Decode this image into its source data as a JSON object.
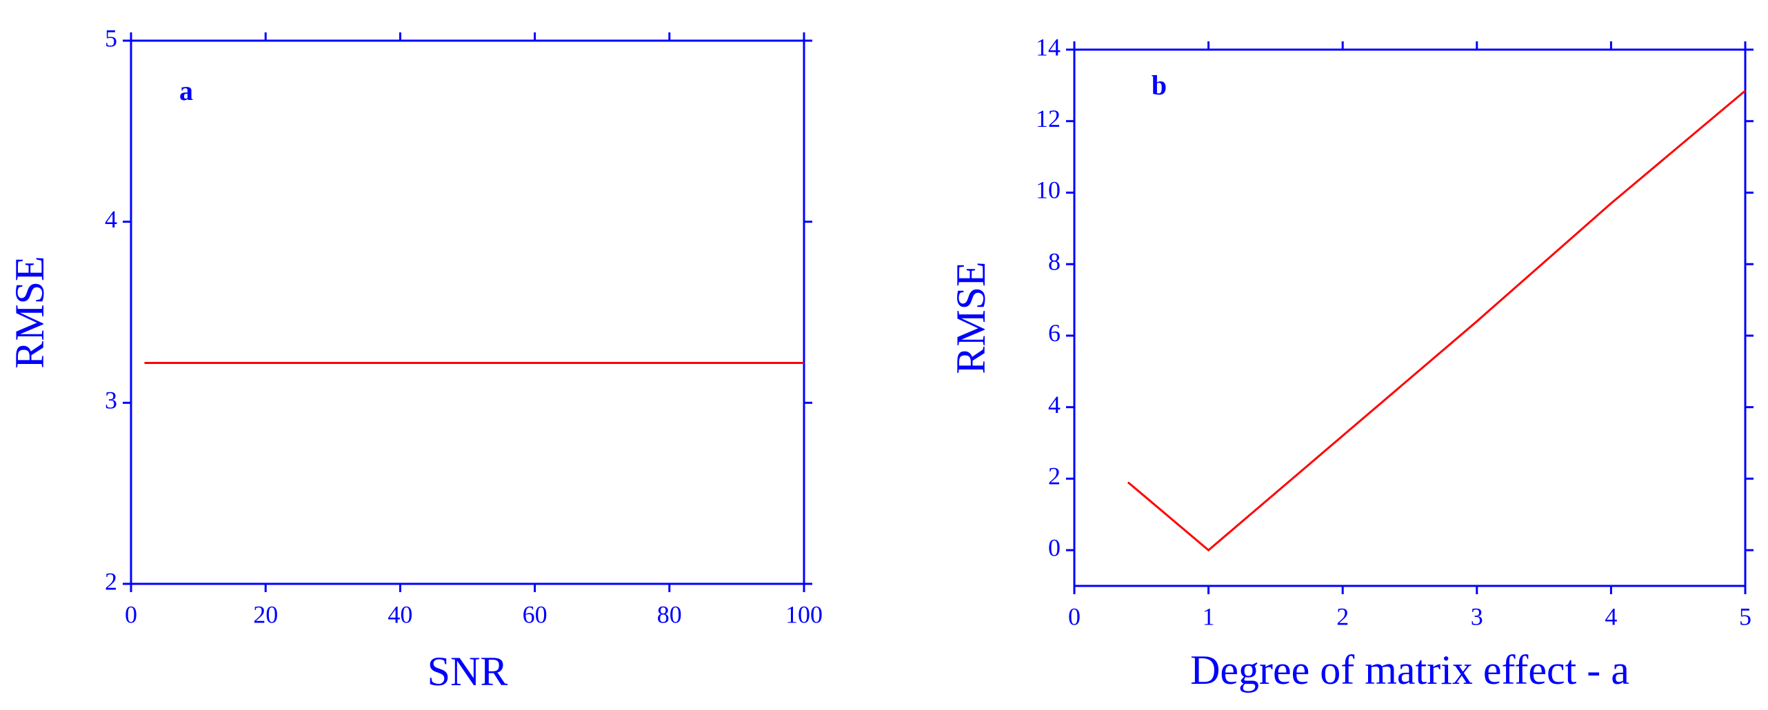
{
  "chart_data": [
    {
      "type": "line",
      "annotation": "a",
      "xlabel": "SNR",
      "ylabel": "RMSE",
      "xlim": [
        0,
        100
      ],
      "xticks": [
        0,
        20,
        40,
        60,
        80,
        100
      ],
      "ylim": [
        2,
        5
      ],
      "yticks": [
        2,
        3,
        4,
        5
      ],
      "x": [
        2,
        100
      ],
      "series": [
        {
          "color": "#ff0000",
          "values": [
            3.22,
            3.22
          ]
        }
      ]
    },
    {
      "type": "line",
      "annotation": "b",
      "xlabel": "Degree of matrix effect - a",
      "ylabel": "RMSE",
      "xlim": [
        0,
        5
      ],
      "xticks": [
        0,
        1,
        2,
        3,
        4,
        5
      ],
      "ylim": [
        -1,
        14
      ],
      "yticks": [
        0,
        2,
        4,
        6,
        8,
        10,
        12,
        14
      ],
      "x": [
        0.4,
        1,
        2,
        3,
        4,
        5
      ],
      "series": [
        {
          "color": "#ff0000",
          "values": [
            1.9,
            0,
            3.2,
            6.4,
            9.7,
            12.85
          ]
        }
      ]
    }
  ]
}
